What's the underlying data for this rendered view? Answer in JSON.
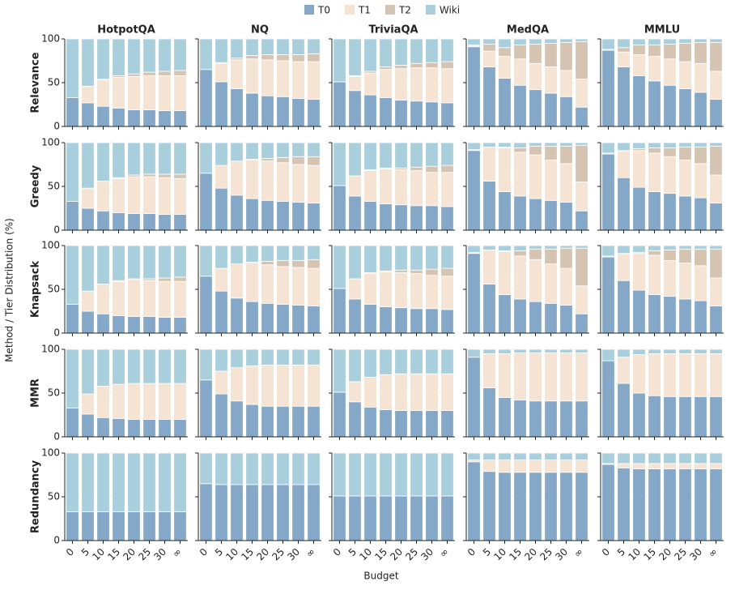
{
  "chart_data": {
    "type": "stacked_bar_grid",
    "series": [
      {
        "name": "T0",
        "color": "#86a8c8"
      },
      {
        "name": "T1",
        "color": "#f5e3d4"
      },
      {
        "name": "T2",
        "color": "#d5c4b2"
      },
      {
        "name": "Wiki",
        "color": "#a9cfdc"
      }
    ],
    "columns": [
      "HotpotQA",
      "NQ",
      "TriviaQA",
      "MedQA",
      "MMLU"
    ],
    "rows": [
      "Relevance",
      "Greedy",
      "Knapsack",
      "MMR",
      "Redundancy"
    ],
    "categories": [
      "0",
      "5",
      "10",
      "15",
      "20",
      "25",
      "30",
      "∞"
    ],
    "xlabel": "Budget",
    "ylabel": "Method / Tier Distribution (%)",
    "ylim": [
      0,
      100
    ],
    "yticks": [
      0,
      50,
      100
    ],
    "grid": true,
    "panels": [
      [
        [
          [
            33,
            27,
            23,
            21,
            19,
            19,
            18,
            18
          ],
          [
            0,
            19,
            30,
            35,
            38,
            39,
            40,
            40
          ],
          [
            0,
            0,
            1,
            2,
            3,
            4,
            5,
            6
          ],
          [
            67,
            54,
            46,
            42,
            40,
            38,
            37,
            36
          ]
        ],
        [
          [
            65,
            51,
            43,
            38,
            35,
            34,
            32,
            31
          ],
          [
            0,
            21,
            33,
            39,
            41,
            41,
            42,
            43
          ],
          [
            0,
            1,
            2,
            4,
            6,
            7,
            8,
            9
          ],
          [
            35,
            27,
            22,
            19,
            18,
            18,
            18,
            17
          ]
        ],
        [
          [
            51,
            41,
            36,
            33,
            30,
            29,
            28,
            27
          ],
          [
            0,
            16,
            25,
            32,
            36,
            38,
            39,
            39
          ],
          [
            0,
            1,
            2,
            3,
            4,
            5,
            6,
            8
          ],
          [
            49,
            42,
            37,
            32,
            30,
            28,
            27,
            26
          ]
        ],
        [
          [
            91,
            68,
            55,
            47,
            42,
            38,
            34,
            22
          ],
          [
            1,
            18,
            25,
            30,
            30,
            30,
            30,
            32
          ],
          [
            1,
            8,
            10,
            16,
            22,
            27,
            32,
            43
          ],
          [
            7,
            6,
            10,
            7,
            6,
            5,
            4,
            3
          ]
        ],
        [
          [
            87,
            68,
            58,
            52,
            47,
            43,
            39,
            31
          ],
          [
            0,
            17,
            24,
            28,
            30,
            31,
            33,
            32
          ],
          [
            1,
            5,
            11,
            13,
            17,
            21,
            24,
            33
          ],
          [
            12,
            10,
            7,
            7,
            6,
            5,
            4,
            4
          ]
        ]
      ],
      [
        [
          [
            33,
            25,
            22,
            20,
            19,
            19,
            18,
            18
          ],
          [
            0,
            23,
            34,
            39,
            42,
            42,
            42,
            41
          ],
          [
            0,
            0,
            0,
            1,
            2,
            3,
            4,
            5
          ],
          [
            67,
            52,
            44,
            40,
            37,
            36,
            36,
            36
          ]
        ],
        [
          [
            65,
            48,
            40,
            36,
            34,
            33,
            32,
            31
          ],
          [
            0,
            26,
            39,
            44,
            45,
            44,
            43,
            43
          ],
          [
            0,
            0,
            0,
            1,
            3,
            6,
            9,
            10
          ],
          [
            35,
            26,
            21,
            19,
            18,
            17,
            16,
            16
          ]
        ],
        [
          [
            51,
            39,
            33,
            30,
            29,
            28,
            28,
            27
          ],
          [
            0,
            23,
            35,
            40,
            40,
            40,
            38,
            39
          ],
          [
            0,
            0,
            1,
            1,
            2,
            4,
            7,
            8
          ],
          [
            49,
            38,
            31,
            29,
            29,
            28,
            27,
            26
          ]
        ],
        [
          [
            91,
            56,
            44,
            39,
            36,
            34,
            32,
            22
          ],
          [
            1,
            39,
            50,
            50,
            50,
            46,
            44,
            33
          ],
          [
            0,
            0,
            1,
            5,
            10,
            16,
            20,
            42
          ],
          [
            8,
            5,
            5,
            6,
            4,
            4,
            4,
            3
          ]
        ],
        [
          [
            87,
            60,
            49,
            44,
            42,
            39,
            37,
            31
          ],
          [
            0,
            30,
            42,
            44,
            42,
            41,
            39,
            32
          ],
          [
            1,
            1,
            2,
            6,
            10,
            15,
            19,
            33
          ],
          [
            12,
            9,
            7,
            6,
            6,
            5,
            5,
            4
          ]
        ]
      ],
      [
        [
          [
            33,
            25,
            22,
            20,
            19,
            19,
            18,
            18
          ],
          [
            0,
            23,
            34,
            39,
            42,
            41,
            41,
            41
          ],
          [
            0,
            0,
            0,
            1,
            1,
            2,
            4,
            5
          ],
          [
            67,
            52,
            44,
            40,
            38,
            38,
            37,
            36
          ]
        ],
        [
          [
            65,
            48,
            40,
            36,
            34,
            33,
            32,
            31
          ],
          [
            0,
            26,
            39,
            44,
            44,
            43,
            43,
            43
          ],
          [
            0,
            0,
            0,
            1,
            4,
            7,
            8,
            10
          ],
          [
            35,
            26,
            21,
            19,
            18,
            17,
            17,
            16
          ]
        ],
        [
          [
            51,
            39,
            33,
            30,
            29,
            28,
            28,
            27
          ],
          [
            0,
            23,
            35,
            40,
            40,
            40,
            38,
            38
          ],
          [
            0,
            0,
            1,
            1,
            3,
            4,
            7,
            9
          ],
          [
            49,
            38,
            31,
            29,
            28,
            28,
            27,
            26
          ]
        ],
        [
          [
            91,
            56,
            44,
            39,
            36,
            34,
            32,
            22
          ],
          [
            1,
            39,
            49,
            49,
            48,
            45,
            42,
            32
          ],
          [
            0,
            0,
            1,
            6,
            12,
            17,
            23,
            43
          ],
          [
            8,
            5,
            6,
            6,
            4,
            4,
            3,
            3
          ]
        ],
        [
          [
            87,
            60,
            49,
            44,
            42,
            39,
            37,
            31
          ],
          [
            0,
            30,
            42,
            45,
            41,
            41,
            40,
            32
          ],
          [
            1,
            1,
            1,
            5,
            12,
            16,
            19,
            33
          ],
          [
            12,
            9,
            8,
            6,
            5,
            4,
            4,
            4
          ]
        ]
      ],
      [
        [
          [
            33,
            26,
            22,
            21,
            20,
            20,
            20,
            20
          ],
          [
            0,
            23,
            36,
            39,
            41,
            41,
            41,
            41
          ],
          [
            0,
            0,
            0,
            0,
            0,
            0,
            0,
            0
          ],
          [
            67,
            51,
            42,
            40,
            39,
            39,
            39,
            39
          ]
        ],
        [
          [
            65,
            49,
            41,
            37,
            35,
            35,
            35,
            35
          ],
          [
            0,
            26,
            38,
            44,
            47,
            47,
            47,
            47
          ],
          [
            0,
            0,
            0,
            0,
            0,
            0,
            0,
            0
          ],
          [
            35,
            25,
            21,
            19,
            18,
            18,
            18,
            18
          ]
        ],
        [
          [
            51,
            40,
            34,
            31,
            30,
            30,
            30,
            30
          ],
          [
            0,
            23,
            34,
            40,
            42,
            42,
            42,
            42
          ],
          [
            0,
            0,
            0,
            0,
            0,
            0,
            0,
            0
          ],
          [
            49,
            37,
            32,
            29,
            28,
            28,
            28,
            28
          ]
        ],
        [
          [
            91,
            56,
            45,
            42,
            41,
            41,
            41,
            41
          ],
          [
            0,
            39,
            50,
            54,
            55,
            55,
            55,
            55
          ],
          [
            0,
            0,
            0,
            0,
            0,
            0,
            0,
            0
          ],
          [
            9,
            5,
            5,
            4,
            4,
            4,
            4,
            4
          ]
        ],
        [
          [
            87,
            61,
            50,
            47,
            46,
            46,
            46,
            46
          ],
          [
            0,
            30,
            44,
            48,
            49,
            49,
            49,
            49
          ],
          [
            0,
            0,
            0,
            0,
            0,
            0,
            0,
            0
          ],
          [
            13,
            9,
            6,
            5,
            5,
            5,
            5,
            5
          ]
        ]
      ],
      [
        [
          [
            33,
            33,
            33,
            33,
            33,
            33,
            33,
            33
          ],
          [
            0,
            0,
            0,
            0,
            0,
            0,
            0,
            0
          ],
          [
            0,
            0,
            0,
            0,
            0,
            0,
            0,
            0
          ],
          [
            67,
            67,
            67,
            67,
            67,
            67,
            67,
            67
          ]
        ],
        [
          [
            65,
            64,
            64,
            64,
            64,
            64,
            64,
            64
          ],
          [
            0,
            0,
            0,
            0,
            0,
            0,
            0,
            0
          ],
          [
            0,
            0,
            0,
            0,
            0,
            0,
            0,
            0
          ],
          [
            35,
            36,
            36,
            36,
            36,
            36,
            36,
            36
          ]
        ],
        [
          [
            51,
            51,
            51,
            51,
            51,
            51,
            51,
            51
          ],
          [
            0,
            0,
            0,
            0,
            0,
            0,
            0,
            0
          ],
          [
            0,
            0,
            0,
            0,
            0,
            0,
            0,
            0
          ],
          [
            49,
            49,
            49,
            49,
            49,
            49,
            49,
            49
          ]
        ],
        [
          [
            90,
            79,
            78,
            78,
            78,
            78,
            78,
            78
          ],
          [
            2,
            13,
            14,
            14,
            14,
            14,
            14,
            14
          ],
          [
            0,
            0,
            0,
            0,
            0,
            0,
            0,
            0
          ],
          [
            8,
            8,
            8,
            8,
            8,
            8,
            8,
            8
          ]
        ],
        [
          [
            87,
            83,
            82,
            82,
            82,
            82,
            82,
            82
          ],
          [
            1,
            5,
            6,
            6,
            6,
            6,
            6,
            6
          ],
          [
            0,
            0,
            0,
            0,
            0,
            0,
            0,
            0
          ],
          [
            12,
            12,
            12,
            12,
            12,
            12,
            12,
            12
          ]
        ]
      ]
    ]
  }
}
